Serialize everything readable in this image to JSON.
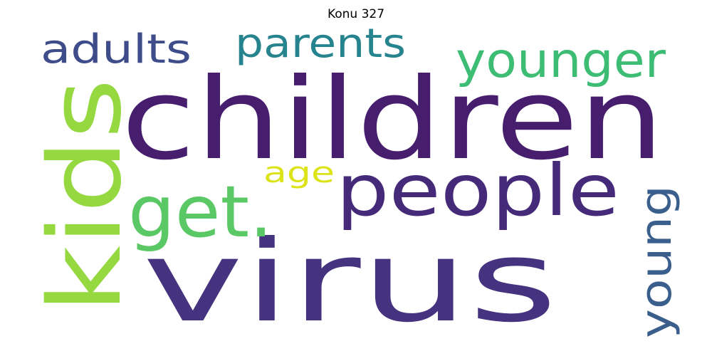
{
  "title": "Konu 327",
  "words": [
    {
      "text": "children",
      "color": "#471d6e"
    },
    {
      "text": "virus",
      "color": "#46337f"
    },
    {
      "text": "kids",
      "color": "#95d840"
    },
    {
      "text": "people",
      "color": "#462a7a"
    },
    {
      "text": "get.",
      "color": "#5ac864"
    },
    {
      "text": "younger",
      "color": "#3dbc74"
    },
    {
      "text": "parents",
      "color": "#25848e"
    },
    {
      "text": "adults",
      "color": "#3e4c8a"
    },
    {
      "text": "young",
      "color": "#3b5f8c"
    },
    {
      "text": "age",
      "color": "#dce319"
    }
  ]
}
